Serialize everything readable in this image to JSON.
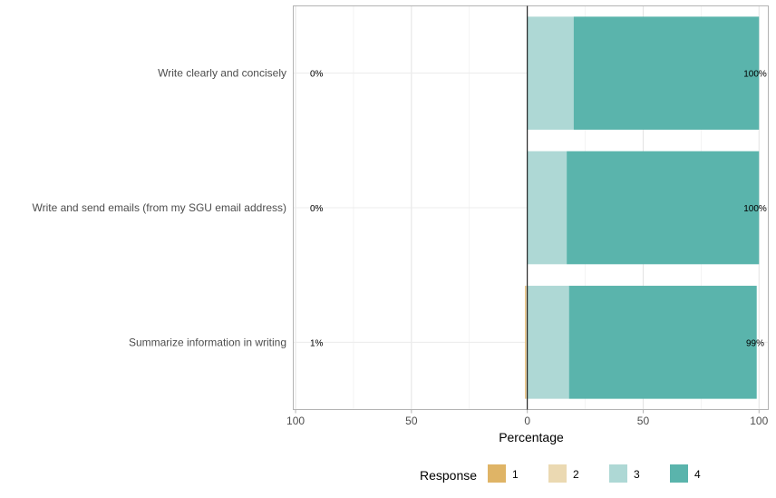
{
  "chart_data": {
    "type": "bar",
    "orientation": "horizontal",
    "diverging": true,
    "categories": [
      "Write clearly and concisely",
      "Write and send emails (from my SGU email address)",
      "Summarize information in writing"
    ],
    "series": [
      {
        "name": "1",
        "color": "#dfb466",
        "values": [
          0,
          0,
          0.3
        ]
      },
      {
        "name": "2",
        "color": "#ebd9b2",
        "values": [
          0,
          0,
          0.7
        ]
      },
      {
        "name": "3",
        "color": "#aed8d5",
        "values": [
          20,
          17,
          18
        ]
      },
      {
        "name": "4",
        "color": "#5ab4ac",
        "values": [
          80,
          83,
          81
        ]
      }
    ],
    "left_labels": [
      "0%",
      "0%",
      "1%"
    ],
    "right_labels": [
      "100%",
      "100%",
      "99%"
    ],
    "xlabel": "Percentage",
    "ylabel": "",
    "xlim": [
      -101,
      104
    ],
    "x_ticks": [
      -100,
      -50,
      0,
      50,
      100
    ],
    "x_tick_labels": [
      "100",
      "50",
      "0",
      "50",
      "100"
    ],
    "grid": true,
    "legend": {
      "title": "Response",
      "placement": "bottom"
    }
  }
}
